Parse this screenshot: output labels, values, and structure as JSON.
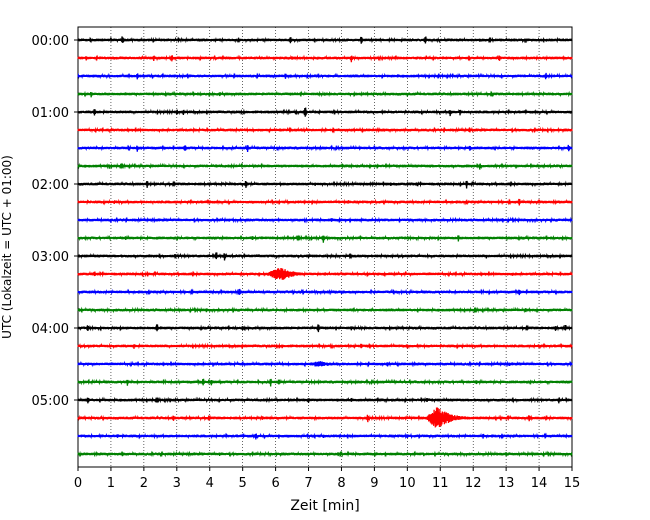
{
  "chart_data": {
    "type": "line",
    "title": "",
    "xlabel": "Zeit  [min]",
    "ylabel": "UTC (Lokalzeit = UTC + 01:00)",
    "xlim": [
      0,
      15
    ],
    "x_ticks": [
      0,
      1,
      2,
      3,
      4,
      5,
      6,
      7,
      8,
      9,
      10,
      11,
      12,
      13,
      14,
      15
    ],
    "y_tick_labels": [
      "00:00",
      "01:00",
      "02:00",
      "03:00",
      "04:00",
      "05:00"
    ],
    "trace_interval_minutes": 15,
    "trace_count": 24,
    "colors": [
      "#000000",
      "#ff0000",
      "#0000ff",
      "#008000"
    ],
    "grid": "vertical-dotted",
    "spikes": [
      [
        [
          1.35,
          0.6
        ],
        [
          6.45,
          0.5
        ],
        [
          8.6,
          0.6
        ],
        [
          10.55,
          0.6
        ],
        [
          3.1,
          0.25
        ],
        [
          12.2,
          0.25
        ],
        [
          13.6,
          0.3
        ]
      ],
      [
        [
          0.25,
          0.3
        ],
        [
          2.3,
          0.4
        ],
        [
          2.85,
          0.5
        ],
        [
          6.5,
          0.3
        ],
        [
          8.3,
          0.5
        ],
        [
          12.8,
          0.5
        ],
        [
          4.6,
          0.2
        ]
      ],
      [
        [
          1.8,
          0.5
        ],
        [
          6.3,
          0.45
        ],
        [
          9.7,
          0.3
        ],
        [
          14.2,
          0.5
        ],
        [
          3.7,
          0.2
        ],
        [
          11.0,
          0.3
        ]
      ],
      [
        [
          0.4,
          0.4
        ],
        [
          4.3,
          0.3
        ],
        [
          7.5,
          0.3
        ],
        [
          10.0,
          0.3
        ],
        [
          12.6,
          0.25
        ]
      ],
      [
        [
          0.5,
          0.5
        ],
        [
          3.0,
          0.45
        ],
        [
          3.2,
          0.35
        ],
        [
          6.9,
          0.8
        ],
        [
          11.3,
          0.5
        ],
        [
          11.6,
          0.4
        ]
      ],
      [
        [
          1.1,
          0.2
        ],
        [
          6.1,
          0.2
        ],
        [
          9.3,
          0.2
        ],
        [
          11.9,
          0.45
        ],
        [
          13.5,
          0.2
        ]
      ],
      [
        [
          1.8,
          0.5
        ],
        [
          3.25,
          0.55
        ],
        [
          5.15,
          0.55
        ],
        [
          6.05,
          0.3
        ],
        [
          11.9,
          0.5
        ],
        [
          14.9,
          0.5
        ],
        [
          8.7,
          0.2
        ]
      ],
      [
        [
          0.95,
          0.3
        ],
        [
          4.2,
          0.3
        ],
        [
          8.25,
          0.3
        ],
        [
          12.2,
          0.45
        ],
        [
          13.3,
          0.3
        ],
        [
          10.7,
          0.2
        ]
      ],
      [
        [
          2.1,
          0.5
        ],
        [
          5.1,
          0.55
        ],
        [
          9.5,
          0.3
        ],
        [
          11.8,
          0.55
        ],
        [
          7.2,
          0.25
        ],
        [
          10.3,
          0.3
        ]
      ],
      [
        [
          1.1,
          0.3
        ],
        [
          4.0,
          0.3
        ],
        [
          8.2,
          0.3
        ],
        [
          13.4,
          0.5
        ],
        [
          6.6,
          0.2
        ]
      ],
      [
        [
          1.0,
          0.3
        ],
        [
          4.6,
          0.3
        ],
        [
          7.7,
          0.3
        ],
        [
          12.9,
          0.3
        ],
        [
          9.9,
          0.2
        ]
      ],
      [
        [
          1.45,
          0.3
        ],
        [
          5.3,
          0.3
        ],
        [
          7.45,
          0.65
        ],
        [
          11.55,
          0.45
        ],
        [
          2.4,
          0.2
        ]
      ],
      [
        [
          2.95,
          0.4
        ],
        [
          4.2,
          0.6
        ],
        [
          4.45,
          0.55
        ],
        [
          7.0,
          0.3
        ],
        [
          12.4,
          0.3
        ]
      ],
      [
        [
          0.5,
          0.4
        ],
        [
          5.5,
          0.3
        ],
        [
          7.5,
          0.3
        ],
        [
          13.2,
          0.3
        ],
        [
          9.0,
          0.2
        ]
      ],
      [
        [
          4.9,
          0.55
        ],
        [
          8.0,
          0.25
        ],
        [
          10.3,
          0.3
        ],
        [
          13.4,
          0.5
        ],
        [
          2.2,
          0.2
        ]
      ],
      [
        [
          0.05,
          0.3
        ],
        [
          3.9,
          0.3
        ],
        [
          8.9,
          0.25
        ],
        [
          12.0,
          0.25
        ],
        [
          13.6,
          0.35
        ]
      ],
      [
        [
          0.3,
          0.5
        ],
        [
          2.4,
          0.6
        ],
        [
          5.0,
          0.4
        ],
        [
          7.3,
          0.65
        ],
        [
          8.3,
          0.35
        ],
        [
          14.5,
          0.45
        ],
        [
          14.8,
          0.5
        ]
      ],
      [
        [
          1.7,
          0.35
        ],
        [
          6.2,
          0.3
        ],
        [
          8.6,
          0.35
        ],
        [
          10.0,
          0.35
        ],
        [
          14.0,
          0.3
        ]
      ],
      [
        [
          0.3,
          0.3
        ],
        [
          4.1,
          0.3
        ],
        [
          7.2,
          0.3
        ],
        [
          9.4,
          0.35
        ],
        [
          13.1,
          0.25
        ]
      ],
      [
        [
          1.5,
          0.45
        ],
        [
          3.8,
          0.55
        ],
        [
          4.05,
          0.45
        ],
        [
          5.85,
          0.5
        ],
        [
          6.1,
          0.45
        ],
        [
          12.1,
          0.3
        ]
      ],
      [
        [
          0.3,
          0.5
        ],
        [
          2.8,
          0.4
        ],
        [
          7.0,
          0.45
        ],
        [
          8.3,
          0.35
        ],
        [
          10.6,
          0.4
        ],
        [
          14.6,
          0.45
        ]
      ],
      [
        [
          2.9,
          0.4
        ],
        [
          5.6,
          0.3
        ],
        [
          8.8,
          0.55
        ],
        [
          13.7,
          0.5
        ],
        [
          11.4,
          0.3
        ]
      ],
      [
        [
          1.2,
          0.3
        ],
        [
          5.4,
          0.5
        ],
        [
          6.1,
          0.3
        ],
        [
          7.45,
          0.35
        ],
        [
          10.0,
          0.3
        ],
        [
          12.3,
          0.4
        ]
      ],
      [
        [
          1.35,
          0.45
        ],
        [
          4.3,
          0.3
        ],
        [
          7.9,
          0.3
        ],
        [
          10.5,
          0.25
        ],
        [
          13.0,
          0.3
        ]
      ]
    ],
    "events": [
      {
        "trace": 13,
        "start": 5.75,
        "peak": 6.15,
        "end": 7.5,
        "amplitude": 0.8,
        "color": "#ff0000"
      },
      {
        "trace": 18,
        "start": 6.9,
        "peak": 7.4,
        "end": 8.5,
        "amplitude": 0.35,
        "color": "#ff0000"
      },
      {
        "trace": 21,
        "start": 10.6,
        "peak": 10.9,
        "end": 12.4,
        "amplitude": 1.25,
        "color": "#008000"
      }
    ]
  }
}
